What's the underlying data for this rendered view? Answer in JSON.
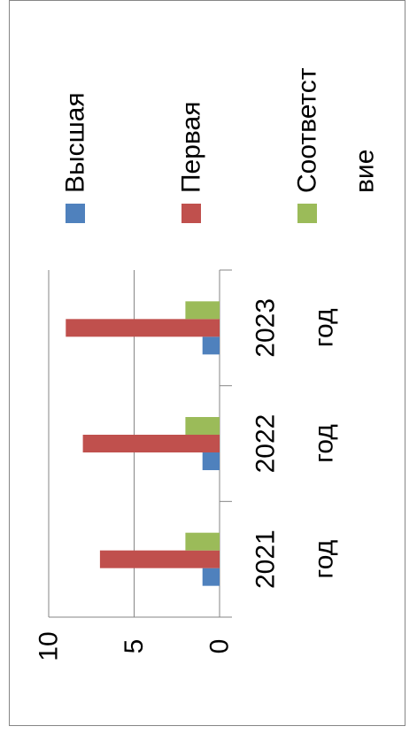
{
  "chart_data": {
    "type": "bar",
    "orientation": "rotated-90-clockwise",
    "categories": [
      "2021 год",
      "2022 год",
      "2023 год"
    ],
    "category_lines": [
      [
        "2021",
        "год"
      ],
      [
        "2022",
        "год"
      ],
      [
        "2023",
        "год"
      ]
    ],
    "series": [
      {
        "name": "Высшая",
        "values": [
          1,
          1,
          1
        ]
      },
      {
        "name": "Первая",
        "values": [
          7,
          8,
          9
        ]
      },
      {
        "name": "Соответствие",
        "legend_lines": [
          "Соответст",
          "вие"
        ],
        "values": [
          2,
          2,
          2
        ]
      }
    ],
    "colors": [
      "#4F81BD",
      "#C0504D",
      "#9BBB59"
    ],
    "ylim": [
      0,
      10
    ],
    "yticks": [
      "0",
      "5",
      "10"
    ],
    "grid": true,
    "legend": "right"
  }
}
